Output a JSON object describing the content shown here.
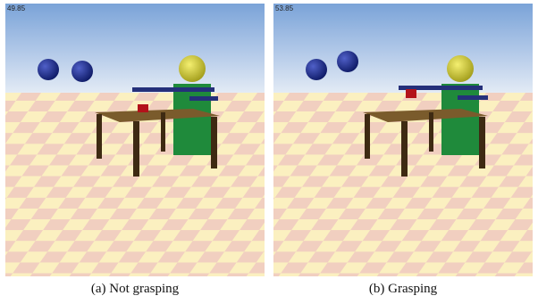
{
  "panels": [
    {
      "fps": "49.85",
      "caption": "(a) Not grasping",
      "grasping": false
    },
    {
      "fps": "53.85",
      "caption": "(b) Grasping",
      "grasping": true
    }
  ],
  "colors": {
    "sky_top": "#8fb2df",
    "sky_bottom": "#dbe6f4",
    "floor_light": "#fbf0c0",
    "floor_dark": "#f1cfc0",
    "table_top": "#7a5b2c",
    "table_legs": "#3e2a12",
    "robot_body": "#1f8a3b",
    "robot_head": "#d6cf2a",
    "robot_arm": "#25307a",
    "ball": "#1a2a88",
    "block": "#b3121a"
  }
}
